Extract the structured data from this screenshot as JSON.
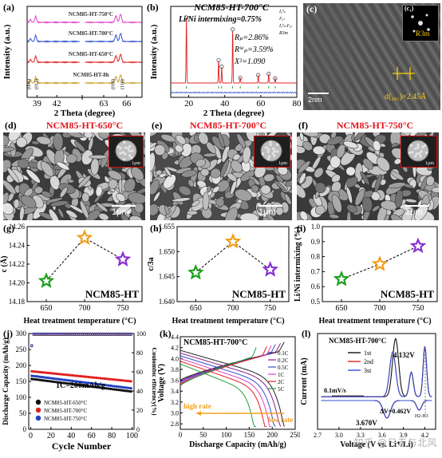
{
  "panels": {
    "a": {
      "label": "(a)"
    },
    "b": {
      "label": "(b)"
    },
    "c": {
      "label": "(c)",
      "inset_label": "(c₁)",
      "phase": "R3m",
      "spacing": "d(₁₀₁)=2.45Å",
      "scale": "2nm"
    },
    "d": {
      "label": "(d)",
      "title": "NCM85-HT-650°C",
      "inset_scale": "1μm",
      "scale": "1μm"
    },
    "e": {
      "label": "(e)",
      "title": "NCM85-HT-700°C",
      "inset_scale": "1μm",
      "scale": "1μm"
    },
    "f": {
      "label": "(f)",
      "title": "NCM85-HT-750°C",
      "inset_scale": "1μm",
      "scale": "1μm"
    },
    "g": {
      "label": "(g)"
    },
    "h": {
      "label": "(h)"
    },
    "i": {
      "label": "(i)"
    },
    "j": {
      "label": "(j)"
    },
    "k": {
      "label": "(k)"
    },
    "l": {
      "label": "(l)"
    }
  },
  "watermark": "知乎 @日走与北风",
  "chart_data": [
    {
      "id": "a",
      "type": "line",
      "xlabel": "2 Theta (degree)",
      "ylabel": "Intensity (a.u.)",
      "xticks": [
        39,
        42,
        63,
        66
      ],
      "xlim": [
        37.5,
        68
      ],
      "series": [
        {
          "name": "NCM85-HT-750°C",
          "color": "#e040c8"
        },
        {
          "name": "NCM85-HT-700°C",
          "color": "#3050d0"
        },
        {
          "name": "NCM85-HT-650°C",
          "color": "#e02020"
        },
        {
          "name": "NCM85-HT-8h",
          "color": "#c8a020"
        }
      ],
      "annotations": [
        "(006)",
        "(012)",
        "(018)",
        "(110)"
      ]
    },
    {
      "id": "b",
      "type": "line",
      "title": "NCM85-HT-700°C",
      "subtitle": "Li/Ni intermixing=0.75%",
      "xlabel": "2 Theta (degree)",
      "ylabel": "Intensity (a.u.)",
      "xticks": [
        20,
        40,
        60,
        80
      ],
      "xlim": [
        10,
        80
      ],
      "legend": [
        "Iₒᵇₛ",
        "Iᶜₐₗ",
        "Iₒᵇₛ-Iᶜₐₗ",
        "R3m"
      ],
      "stats": [
        "Rₚ=2.86%",
        "Rᵂₚ=3.59%",
        "X²=1.090"
      ],
      "peaks_x": [
        18.7,
        36.6,
        38.3,
        44.4,
        48.6,
        58.6,
        64.4,
        68.0
      ],
      "peaks_rel": [
        1.0,
        0.35,
        0.25,
        0.82,
        0.08,
        0.12,
        0.14,
        0.07
      ]
    },
    {
      "id": "g",
      "type": "scatter",
      "xlabel": "Heat treatment temperature (°C)",
      "ylabel": "c (Å)",
      "annotation": "NCM85-HT",
      "x": [
        650,
        700,
        750
      ],
      "y": [
        14.202,
        14.248,
        14.225
      ],
      "colors": [
        "#20a020",
        "#f0a020",
        "#8a30d0"
      ],
      "xticks": [
        650,
        700,
        750
      ],
      "ylim": [
        14.18,
        14.26
      ],
      "yticks": [
        14.18,
        14.2,
        14.22,
        14.24,
        14.26
      ]
    },
    {
      "id": "h",
      "type": "scatter",
      "xlabel": "Heat treatment temperature (°C)",
      "ylabel": "c/3a",
      "annotation": "NCM85-HT",
      "x": [
        650,
        700,
        750
      ],
      "y": [
        1.6458,
        1.652,
        1.6464
      ],
      "colors": [
        "#20a020",
        "#f0a020",
        "#8a30d0"
      ],
      "xticks": [
        650,
        700,
        750
      ],
      "ylim": [
        1.64,
        1.655
      ],
      "yticks": [
        1.64,
        1.645,
        1.65,
        1.655
      ]
    },
    {
      "id": "i",
      "type": "scatter",
      "xlabel": "Heat treatment temperature (°C)",
      "ylabel": "Li/Ni intermixing (%)",
      "annotation": "NCM85-HT",
      "x": [
        650,
        700,
        750
      ],
      "y": [
        0.65,
        0.75,
        0.87
      ],
      "colors": [
        "#20a020",
        "#f0a020",
        "#8a30d0"
      ],
      "xticks": [
        650,
        700,
        750
      ],
      "ylim": [
        0.5,
        1.0
      ],
      "yticks": [
        0.5,
        0.6,
        0.7,
        0.8,
        0.9,
        1.0
      ]
    },
    {
      "id": "j",
      "type": "scatter",
      "xlabel": "Cycle Number",
      "ylabel": "Discharge Capacity (mAh/g)",
      "y2label": "Coulombic efficiency(%)",
      "annotation": "1C=200mAh/g",
      "xticks": [
        0,
        20,
        40,
        60,
        80,
        100
      ],
      "xlim": [
        -2,
        102
      ],
      "ylim": [
        0,
        300
      ],
      "yticks": [
        0,
        50,
        100,
        150,
        200,
        250,
        300
      ],
      "y2lim": [
        0,
        100
      ],
      "y2ticks": [
        0,
        20,
        40,
        60,
        80,
        100
      ],
      "series": [
        {
          "name": "NCM85-HT-650°C",
          "color": "#111111",
          "start": 158,
          "end": 118
        },
        {
          "name": "NCM85-HT-700°C",
          "color": "#e02020",
          "start": 182,
          "end": 150
        },
        {
          "name": "NCM85-HT-750°C",
          "color": "#2040c0",
          "start": 168,
          "end": 128
        }
      ],
      "ce": 99
    },
    {
      "id": "k",
      "type": "line",
      "title": "NCM85-HT-700°C",
      "xlabel": "Discharge Capacity (mAh/g)",
      "ylabel": "Voltage (V)",
      "xticks": [
        0,
        50,
        100,
        150,
        200,
        250
      ],
      "xlim": [
        0,
        250
      ],
      "ylim": [
        2.7,
        4.4
      ],
      "yticks": [
        2.8,
        3.0,
        3.2,
        3.4,
        3.6,
        3.8,
        4.0,
        4.2,
        4.4
      ],
      "annotations": [
        "high rate",
        "low rate"
      ],
      "series": [
        {
          "name": "0.1C",
          "color": "#222222",
          "cap": 226
        },
        {
          "name": "0.2C",
          "color": "#8a2080",
          "cap": 218
        },
        {
          "name": "0.5C",
          "color": "#3050d0",
          "cap": 207
        },
        {
          "name": "1C",
          "color": "#e040c8",
          "cap": 198
        },
        {
          "name": "2C",
          "color": "#e02020",
          "cap": 188
        },
        {
          "name": "5C",
          "color": "#20a040",
          "cap": 165
        }
      ]
    },
    {
      "id": "l",
      "type": "line",
      "title": "NCM85-HT-700°C",
      "xlabel": "Voltage (V vs. Li⁺/Li)",
      "ylabel": "Current (mA)",
      "xticks": [
        2.7,
        3.0,
        3.3,
        3.6,
        3.9,
        4.2
      ],
      "xlim": [
        2.7,
        4.35
      ],
      "annotations": [
        "0.1mV/s",
        "4.132V",
        "3.670V",
        "ΔV=0.462V",
        "H2-H3"
      ],
      "series": [
        {
          "name": "1st",
          "color": "#111111"
        },
        {
          "name": "2nd",
          "color": "#e02020"
        },
        {
          "name": "3st",
          "color": "#3050d0"
        }
      ]
    }
  ]
}
